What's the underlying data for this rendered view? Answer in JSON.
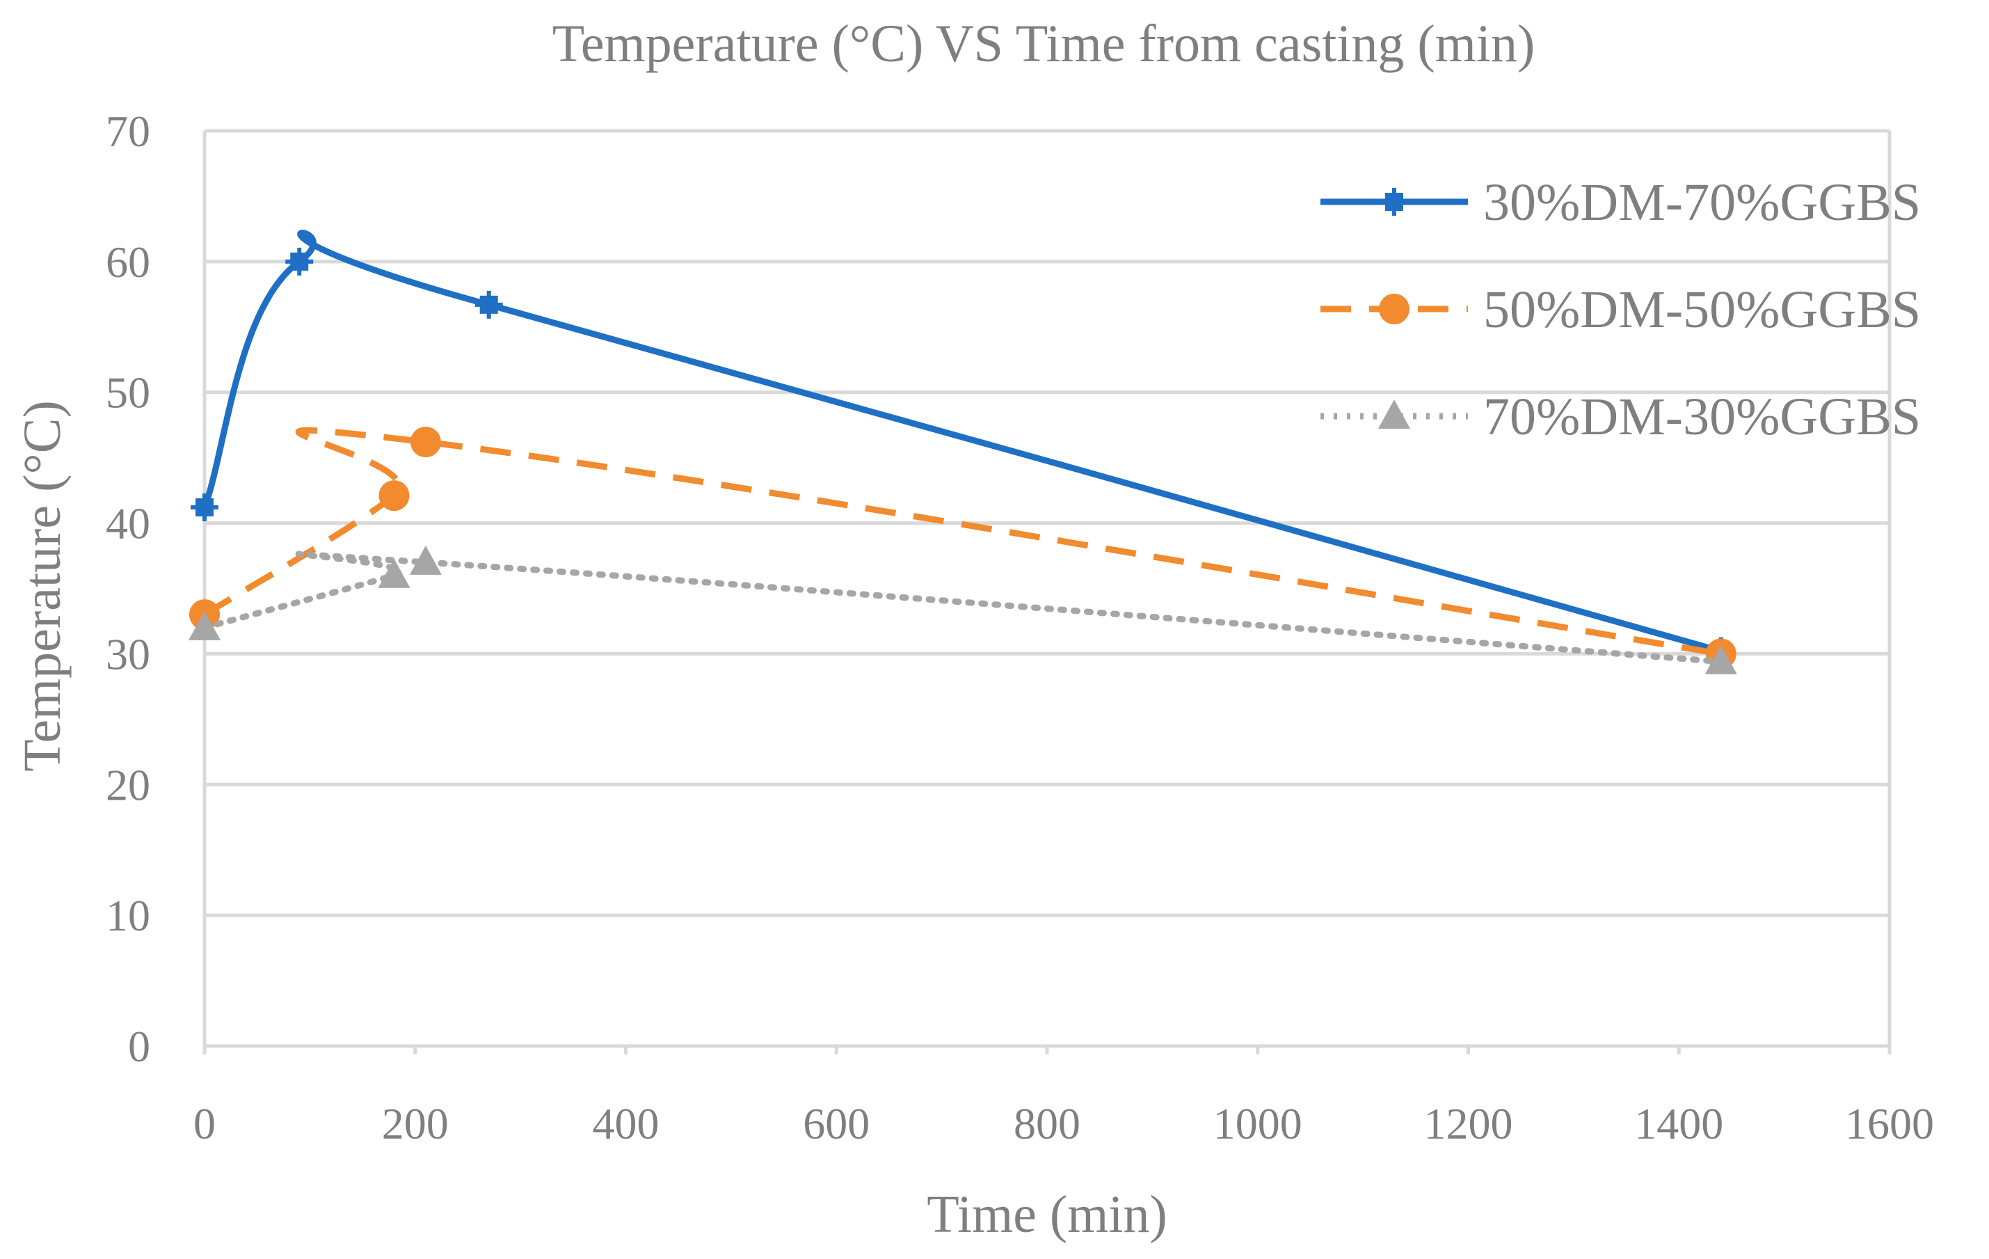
{
  "chart_data": {
    "type": "line",
    "title": "Temperature (°C) VS Time from casting (min)",
    "xlabel": "Time (min)",
    "ylabel": "Temperature (°C)",
    "xlim": [
      0,
      1600
    ],
    "ylim": [
      0,
      70
    ],
    "xticks": [
      0,
      200,
      400,
      600,
      800,
      1000,
      1200,
      1400,
      1600
    ],
    "yticks": [
      0,
      10,
      20,
      30,
      40,
      50,
      60,
      70
    ],
    "grid": "horizontal",
    "legend": "top-right",
    "series": [
      {
        "name": "30%DM-70%GGBS",
        "color": "#1f6fc5",
        "style": "solid",
        "marker": "square-cross",
        "x": [
          0,
          90,
          270,
          1440
        ],
        "y": [
          41.2,
          60.0,
          56.7,
          30.2
        ]
      },
      {
        "name": "50%DM-50%GGBS",
        "color": "#f28a2e",
        "style": "dashed",
        "marker": "circle",
        "x": [
          0,
          180,
          210,
          1440
        ],
        "y": [
          33.0,
          42.1,
          46.2,
          30.0
        ]
      },
      {
        "name": "70%DM-30%GGBS",
        "color": "#a6a6a6",
        "style": "dotted",
        "marker": "triangle",
        "x": [
          0,
          180,
          210,
          1440
        ],
        "y": [
          32.0,
          36.0,
          37.0,
          29.4
        ]
      }
    ]
  }
}
